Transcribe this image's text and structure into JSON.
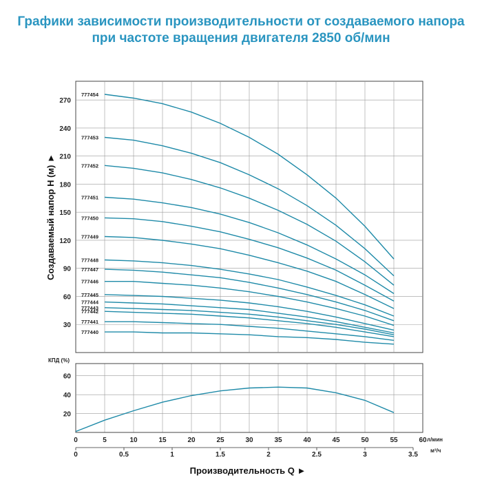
{
  "title_line1": "Графики зависимости производительности от создаваемого напора",
  "title_line2": "при частоте вращения двигателя 2850 об/мин",
  "accent_color": "#2a95c0",
  "curve_color": "#1e8aa8",
  "chart_data": {
    "type": "line",
    "ylabel": "Создаваемый напор H (м)",
    "xlabel": "Производительность Q",
    "x_unit_lmin": "л/мин",
    "x_unit_m3h": "м³/ч",
    "eff_label": "КПД (%)",
    "xlim": [
      0,
      60
    ],
    "xticks_lmin": [
      "0",
      "5",
      "10",
      "15",
      "20",
      "25",
      "30",
      "35",
      "40",
      "45",
      "50",
      "55",
      "60"
    ],
    "xticks_m3h": [
      "0",
      "0.5",
      "1",
      "1.5",
      "2",
      "2.5",
      "3",
      "3.5"
    ],
    "head_ylim": [
      0,
      290
    ],
    "head_yticks": [
      "30",
      "60",
      "90",
      "120",
      "150",
      "180",
      "210",
      "240",
      "270"
    ],
    "eff_ylim": [
      0,
      70
    ],
    "eff_yticks": [
      "20",
      "40",
      "60"
    ],
    "series": [
      {
        "name": "777454",
        "x": [
          5,
          10,
          15,
          20,
          25,
          30,
          35,
          40,
          45,
          50,
          55
        ],
        "y": [
          276,
          272,
          266,
          257,
          245,
          230,
          212,
          190,
          165,
          135,
          100
        ]
      },
      {
        "name": "777453",
        "x": [
          5,
          10,
          15,
          20,
          25,
          30,
          35,
          40,
          45,
          50,
          55
        ],
        "y": [
          230,
          227,
          221,
          213,
          203,
          190,
          175,
          157,
          136,
          111,
          82
        ]
      },
      {
        "name": "777452",
        "x": [
          5,
          10,
          15,
          20,
          25,
          30,
          35,
          40,
          45,
          50,
          55
        ],
        "y": [
          200,
          197,
          192,
          185,
          176,
          165,
          152,
          137,
          119,
          97,
          72
        ]
      },
      {
        "name": "777451",
        "x": [
          5,
          10,
          15,
          20,
          25,
          30,
          35,
          40,
          45,
          50,
          55
        ],
        "y": [
          166,
          164,
          160,
          155,
          148,
          139,
          128,
          115,
          100,
          83,
          63
        ]
      },
      {
        "name": "777450",
        "x": [
          5,
          10,
          15,
          20,
          25,
          30,
          35,
          40,
          45,
          50,
          55
        ],
        "y": [
          144,
          143,
          140,
          135,
          129,
          121,
          112,
          101,
          88,
          72,
          55
        ]
      },
      {
        "name": "777449",
        "x": [
          5,
          10,
          15,
          20,
          25,
          30,
          35,
          40,
          45,
          50,
          55
        ],
        "y": [
          124,
          123,
          120,
          116,
          111,
          104,
          96,
          87,
          76,
          62,
          47
        ]
      },
      {
        "name": "777448",
        "x": [
          5,
          10,
          15,
          20,
          25,
          30,
          35,
          40,
          45,
          50,
          55
        ],
        "y": [
          99,
          98,
          96,
          93,
          89,
          84,
          78,
          70,
          61,
          51,
          39
        ]
      },
      {
        "name": "777447",
        "x": [
          5,
          10,
          15,
          20,
          25,
          30,
          35,
          40,
          45,
          50,
          55
        ],
        "y": [
          89,
          88,
          86,
          83,
          80,
          75,
          69,
          62,
          54,
          45,
          34
        ]
      },
      {
        "name": "777446",
        "x": [
          5,
          10,
          15,
          20,
          25,
          30,
          35,
          40,
          45,
          50,
          55
        ],
        "y": [
          76,
          76,
          74,
          72,
          69,
          65,
          60,
          54,
          47,
          39,
          29
        ]
      },
      {
        "name": "777445",
        "x": [
          5,
          10,
          15,
          20,
          25,
          30,
          35,
          40,
          45,
          50,
          55
        ],
        "y": [
          62,
          61,
          60,
          58,
          56,
          53,
          49,
          44,
          38,
          31,
          24
        ]
      },
      {
        "name": "777444",
        "x": [
          5,
          10,
          15,
          20,
          25,
          30,
          35,
          40,
          45,
          50,
          55
        ],
        "y": [
          54,
          53,
          52,
          50,
          48,
          46,
          42,
          38,
          33,
          27,
          21
        ]
      },
      {
        "name": "777443",
        "x": [
          5,
          10,
          15,
          20,
          25,
          30,
          35,
          40,
          45,
          50,
          55
        ],
        "y": [
          48,
          47,
          46,
          45,
          43,
          41,
          38,
          34,
          30,
          25,
          19
        ]
      },
      {
        "name": "777442",
        "x": [
          5,
          10,
          15,
          20,
          25,
          30,
          35,
          40,
          45,
          50,
          55
        ],
        "y": [
          44,
          43,
          42,
          41,
          39,
          37,
          34,
          31,
          27,
          22,
          17
        ]
      },
      {
        "name": "777441",
        "x": [
          5,
          10,
          15,
          20,
          25,
          30,
          35,
          40,
          45,
          50,
          55
        ],
        "y": [
          33,
          33,
          32,
          31,
          30,
          28,
          26,
          23,
          20,
          17,
          13
        ]
      },
      {
        "name": "777440",
        "x": [
          5,
          10,
          15,
          20,
          25,
          30,
          35,
          40,
          45,
          50,
          55
        ],
        "y": [
          22,
          22,
          21,
          21,
          20,
          19,
          17,
          16,
          14,
          11,
          9
        ]
      }
    ],
    "efficiency": {
      "x": [
        0,
        5,
        10,
        15,
        20,
        25,
        30,
        35,
        40,
        45,
        50,
        55
      ],
      "y": [
        1,
        13,
        23,
        32,
        39,
        44,
        47,
        48,
        47,
        42,
        34,
        21
      ]
    }
  }
}
